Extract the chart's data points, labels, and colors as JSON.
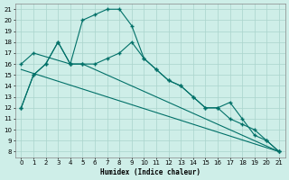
{
  "xlabel": "Humidex (Indice chaleur)",
  "xlim": [
    -0.5,
    21.5
  ],
  "ylim": [
    7.5,
    21.5
  ],
  "yticks": [
    8,
    9,
    10,
    11,
    12,
    13,
    14,
    15,
    16,
    17,
    18,
    19,
    20,
    21
  ],
  "xticks": [
    0,
    1,
    2,
    3,
    4,
    5,
    6,
    7,
    8,
    9,
    10,
    11,
    12,
    13,
    14,
    15,
    16,
    17,
    18,
    19,
    20,
    21
  ],
  "bg_color": "#ceeee8",
  "grid_color": "#aad4cc",
  "line_color": "#007068",
  "series": [
    {
      "x": [
        0,
        1,
        2,
        3,
        4,
        5,
        6,
        7,
        8,
        9,
        10,
        11,
        12,
        13,
        14,
        15,
        16,
        17,
        18,
        19,
        20,
        21
      ],
      "y": [
        12,
        15,
        16,
        18,
        16,
        20,
        20.5,
        21,
        21,
        19.5,
        16.5,
        15.5,
        14.5,
        14,
        13,
        12,
        12,
        12.5,
        11,
        9.5,
        9,
        8
      ],
      "marker": true
    },
    {
      "x": [
        0,
        1,
        2,
        3,
        4,
        5,
        6,
        7,
        8,
        9,
        10,
        11,
        12,
        13,
        14,
        15,
        16,
        17,
        18,
        19,
        20,
        21
      ],
      "y": [
        12,
        15,
        16,
        18,
        16,
        16,
        16,
        16.5,
        17,
        18,
        16.5,
        15.5,
        14.5,
        14,
        13,
        12,
        12,
        11,
        10.5,
        10,
        9,
        8
      ],
      "marker": true
    },
    {
      "x": [
        0,
        1,
        4,
        5,
        21
      ],
      "y": [
        16,
        17,
        16,
        16,
        8
      ],
      "marker": true
    },
    {
      "x": [
        0,
        21
      ],
      "y": [
        15.5,
        8
      ],
      "marker": false
    }
  ]
}
